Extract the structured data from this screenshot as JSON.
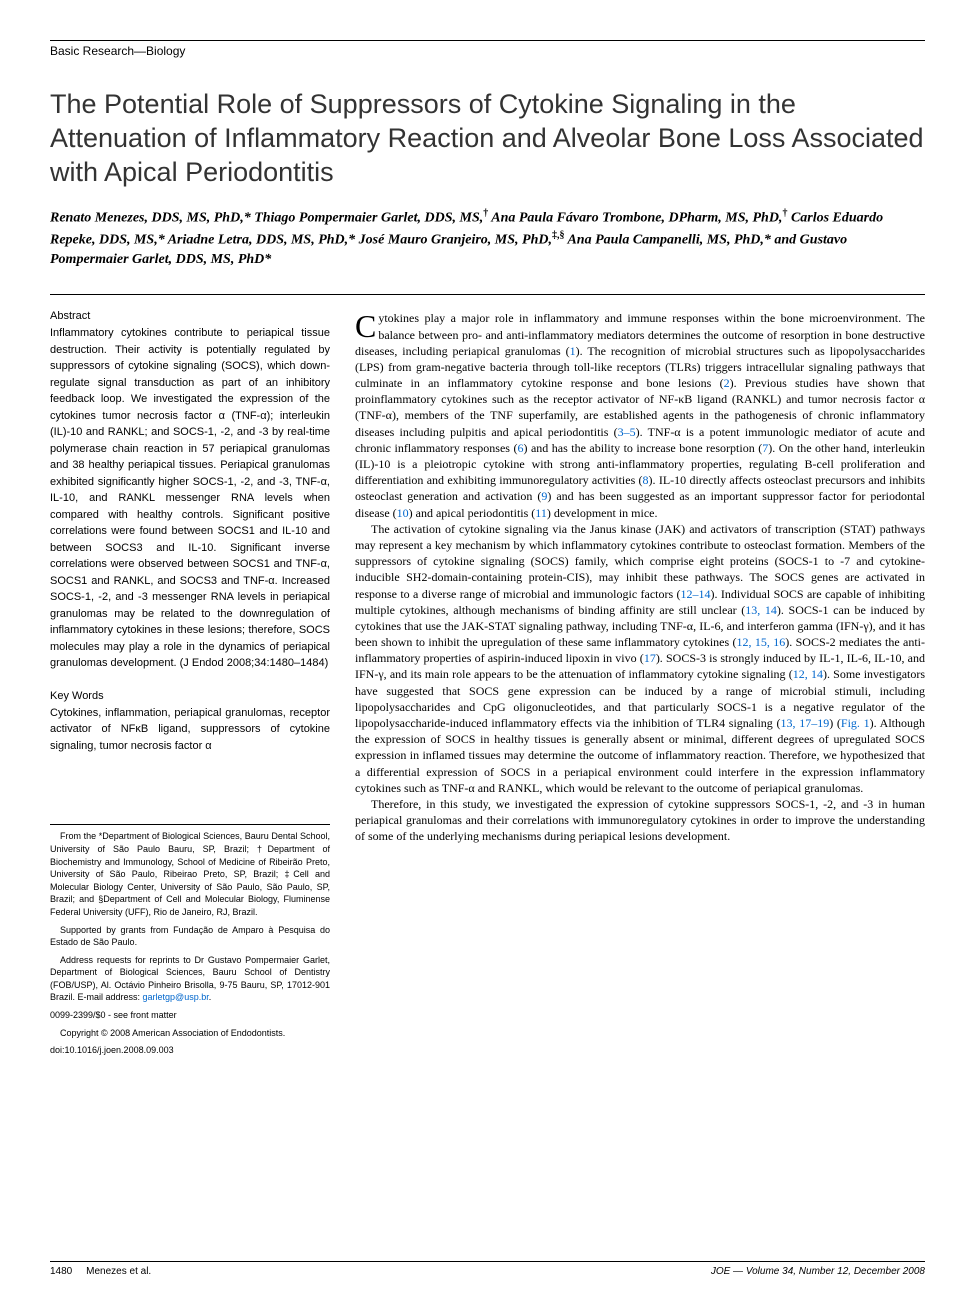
{
  "header": {
    "section_label": "Basic Research—Biology"
  },
  "title": "The Potential Role of Suppressors of Cytokine Signaling in the Attenuation of Inflammatory Reaction and Alveolar Bone Loss Associated with Apical Periodontitis",
  "authors_html": "Renato Menezes, DDS, MS, PhD,* Thiago Pompermaier Garlet, DDS, MS,<sup>†</sup> Ana Paula Fávaro Trombone, DPharm, MS, PhD,<sup>†</sup> Carlos Eduardo Repeke, DDS, MS,* Ariadne Letra, DDS, MS, PhD,* José Mauro Granjeiro, MS, PhD,<sup>‡,§</sup> Ana Paula Campanelli, MS, PhD,* and Gustavo Pompermaier Garlet, DDS, MS, PhD*",
  "abstract": {
    "heading": "Abstract",
    "text": "Inflammatory cytokines contribute to periapical tissue destruction. Their activity is potentially regulated by suppressors of cytokine signaling (SOCS), which down-regulate signal transduction as part of an inhibitory feedback loop. We investigated the expression of the cytokines tumor necrosis factor α (TNF-α); interleukin (IL)-10 and RANKL; and SOCS-1, -2, and -3 by real-time polymerase chain reaction in 57 periapical granulomas and 38 healthy periapical tissues. Periapical granulomas exhibited significantly higher SOCS-1, -2, and -3, TNF-α, IL-10, and RANKL messenger RNA levels when compared with healthy controls. Significant positive correlations were found between SOCS1 and IL-10 and between SOCS3 and IL-10. Significant inverse correlations were observed between SOCS1 and TNF-α, SOCS1 and RANKL, and SOCS3 and TNF-α. Increased SOCS-1, -2, and -3 messenger RNA levels in periapical granulomas may be related to the downregulation of inflammatory cytokines in these lesions; therefore, SOCS molecules may play a role in the dynamics of periapical granulomas development. (J Endod 2008;34:1480–1484)"
  },
  "keywords": {
    "heading": "Key Words",
    "text": "Cytokines, inflammation, periapical granulomas, receptor activator of NFκB ligand, suppressors of cytokine signaling, tumor necrosis factor α"
  },
  "affiliations": {
    "from": "From the *Department of Biological Sciences, Bauru Dental School, University of São Paulo Bauru, SP, Brazil; †Department of Biochemistry and Immunology, School of Medicine of Ribeirão Preto, University of São Paulo, Ribeirao Preto, SP, Brazil; ‡Cell and Molecular Biology Center, University of São Paulo, São Paulo, SP, Brazil; and §Department of Cell and Molecular Biology, Fluminense Federal University (UFF), Rio de Janeiro, RJ, Brazil.",
    "support": "Supported by grants from Fundação de Amparo à Pesquisa do Estado de São Paulo.",
    "reprints": "Address requests for reprints to Dr Gustavo Pompermaier Garlet, Department of Biological Sciences, Bauru School of Dentistry (FOB/USP), Al. Octávio Pinheiro Brisolla, 9-75 Bauru, SP, 17012-901 Brazil. E-mail address: ",
    "email": "garletgp@usp.br",
    "issn": "0099-2399/$0 - see front matter",
    "copyright": "Copyright © 2008 American Association of Endodontists.",
    "doi": "doi:10.1016/j.joen.2008.09.003"
  },
  "body": {
    "p1_dropcap": "C",
    "p1": "ytokines play a major role in inflammatory and immune responses within the bone microenvironment. The balance between pro- and anti-inflammatory mediators determines the outcome of resorption in bone destructive diseases, including periapical granulomas (1). The recognition of microbial structures such as lipopolysaccharides (LPS) from gram-negative bacteria through toll-like receptors (TLRs) triggers intracellular signaling pathways that culminate in an inflammatory cytokine response and bone lesions (2). Previous studies have shown that proinflammatory cytokines such as the receptor activator of NF-κB ligand (RANKL) and tumor necrosis factor α (TNF-α), members of the TNF superfamily, are established agents in the pathogenesis of chronic inflammatory diseases including pulpitis and apical periodontitis (3–5). TNF-α is a potent immunologic mediator of acute and chronic inflammatory responses (6) and has the ability to increase bone resorption (7). On the other hand, interleukin (IL)-10 is a pleiotropic cytokine with strong anti-inflammatory properties, regulating B-cell proliferation and differentiation and exhibiting immunoregulatory activities (8). IL-10 directly affects osteoclast precursors and inhibits osteoclast generation and activation (9) and has been suggested as an important suppressor factor for periodontal disease (10) and apical periodontitis (11) development in mice.",
    "p2": "The activation of cytokine signaling via the Janus kinase (JAK) and activators of transcription (STAT) pathways may represent a key mechanism by which inflammatory cytokines contribute to osteoclast formation. Members of the suppressors of cytokine signaling (SOCS) family, which comprise eight proteins (SOCS-1 to -7 and cytokine-inducible SH2-domain-containing protein-CIS), may inhibit these pathways. The SOCS genes are activated in response to a diverse range of microbial and immunologic factors (12–14). Individual SOCS are capable of inhibiting multiple cytokines, although mechanisms of binding affinity are still unclear (13, 14). SOCS-1 can be induced by cytokines that use the JAK-STAT signaling pathway, including TNF-α, IL-6, and interferon gamma (IFN-γ), and it has been shown to inhibit the upregulation of these same inflammatory cytokines (12, 15, 16). SOCS-2 mediates the anti-inflammatory properties of aspirin-induced lipoxin in vivo (17). SOCS-3 is strongly induced by IL-1, IL-6, IL-10, and IFN-γ, and its main role appears to be the attenuation of inflammatory cytokine signaling (12, 14). Some investigators have suggested that SOCS gene expression can be induced by a range of microbial stimuli, including lipopolysaccharides and CpG oligonucleotides, and that particularly SOCS-1 is a negative regulator of the lipopolysaccharide-induced inflammatory effects via the inhibition of TLR4 signaling (13, 17–19) (Fig. 1). Although the expression of SOCS in healthy tissues is generally absent or minimal, different degrees of upregulated SOCS expression in inflamed tissues may determine the outcome of inflammatory reaction. Therefore, we hypothesized that a differential expression of SOCS in a periapical environment could interfere in the expression inflammatory cytokines such as TNF-α and RANKL, which would be relevant to the outcome of periapical granulomas.",
    "p3": "Therefore, in this study, we investigated the expression of cytokine suppressors SOCS-1, -2, and -3 in human periapical granulomas and their correlations with immunoregulatory cytokines in order to improve the understanding of some of the underlying mechanisms during periapical lesions development."
  },
  "footer": {
    "page": "1480",
    "left": "Menezes et al.",
    "right": "JOE — Volume 34, Number 12, December 2008"
  },
  "colors": {
    "text": "#000000",
    "link": "#0066cc",
    "title": "#333333",
    "background": "#ffffff"
  }
}
